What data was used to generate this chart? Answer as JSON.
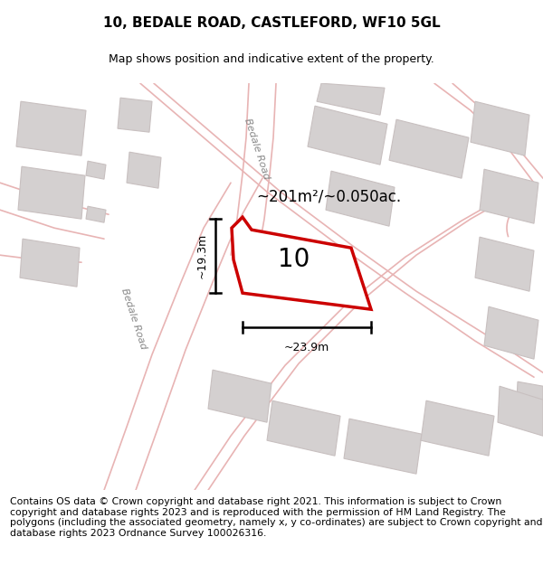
{
  "title": "10, BEDALE ROAD, CASTLEFORD, WF10 5GL",
  "subtitle": "Map shows position and indicative extent of the property.",
  "footer": "Contains OS data © Crown copyright and database right 2021. This information is subject to Crown copyright and database rights 2023 and is reproduced with the permission of HM Land Registry. The polygons (including the associated geometry, namely x, y co-ordinates) are subject to Crown copyright and database rights 2023 Ordnance Survey 100026316.",
  "map_bg": "#f2efef",
  "road_color": "#e8b4b4",
  "building_fill": "#d4d0d0",
  "building_edge": "#c8c0c0",
  "highlight_color": "#cc0000",
  "area_label": "~201m²/~0.050ac.",
  "number_label": "10",
  "dim_h_label": "~19.3m",
  "dim_w_label": "~23.9m",
  "road_label_upper": "Bedale Road",
  "road_label_lower": "Bedale Road",
  "title_fontsize": 11,
  "subtitle_fontsize": 9,
  "footer_fontsize": 7.8
}
